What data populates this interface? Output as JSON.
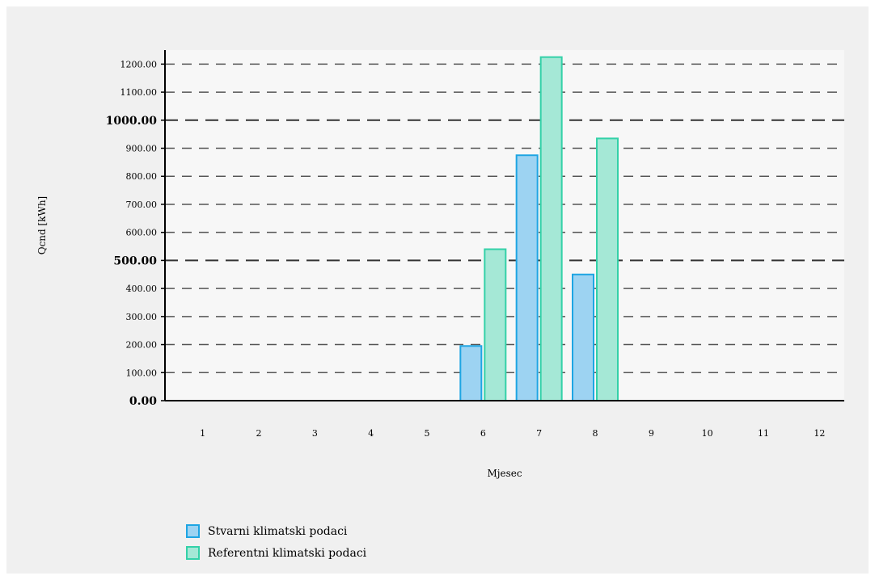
{
  "chart_data": {
    "type": "bar",
    "xlabel": "Mjesec",
    "ylabel": "Qcnd [kWh]",
    "ylim": [
      0,
      1250
    ],
    "yticks": [
      {
        "value": 0,
        "label": "0.00",
        "major": true
      },
      {
        "value": 100,
        "label": "100.00",
        "major": false
      },
      {
        "value": 200,
        "label": "200.00",
        "major": false
      },
      {
        "value": 300,
        "label": "300.00",
        "major": false
      },
      {
        "value": 400,
        "label": "400.00",
        "major": false
      },
      {
        "value": 500,
        "label": "500.00",
        "major": true
      },
      {
        "value": 600,
        "label": "600.00",
        "major": false
      },
      {
        "value": 700,
        "label": "700.00",
        "major": false
      },
      {
        "value": 800,
        "label": "800.00",
        "major": false
      },
      {
        "value": 900,
        "label": "900.00",
        "major": false
      },
      {
        "value": 1000,
        "label": "1000.00",
        "major": true
      },
      {
        "value": 1100,
        "label": "1100.00",
        "major": false
      },
      {
        "value": 1200,
        "label": "1200.00",
        "major": false
      }
    ],
    "categories": [
      "1",
      "2",
      "3",
      "4",
      "5",
      "6",
      "7",
      "8",
      "9",
      "10",
      "11",
      "12"
    ],
    "series": [
      {
        "name": "Stvarni klimatski podaci",
        "fill": "#9dd3f2",
        "stroke": "#1ea5e3",
        "values": [
          0,
          0,
          0,
          0,
          0,
          195,
          875,
          450,
          0,
          0,
          0,
          0
        ]
      },
      {
        "name": "Referentni klimatski podaci",
        "fill": "#a5e8d6",
        "stroke": "#33d1a8",
        "values": [
          0,
          0,
          0,
          0,
          0,
          540,
          1225,
          935,
          0,
          0,
          0,
          0
        ]
      }
    ],
    "grid": true,
    "legend_position": "bottom-left"
  }
}
